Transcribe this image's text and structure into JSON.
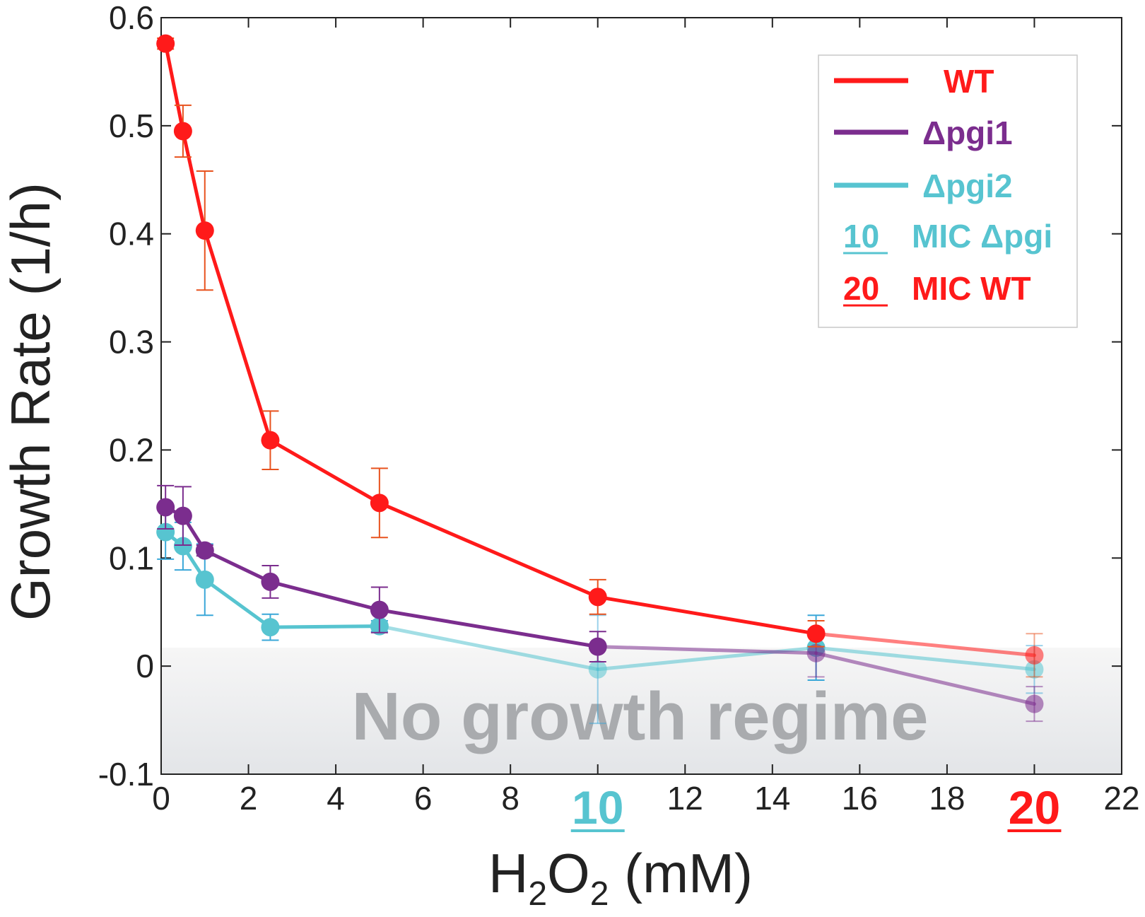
{
  "chart_data": {
    "type": "line",
    "x": [
      0.1,
      0.5,
      1,
      2.5,
      5,
      10,
      15,
      20
    ],
    "series": [
      {
        "name": "WT",
        "color": "#ff1a1a",
        "errorColor": "#e8521e",
        "values": [
          0.576,
          0.495,
          0.403,
          0.209,
          0.151,
          0.064,
          0.03,
          0.01
        ],
        "errors": [
          0.005,
          0.024,
          0.055,
          0.027,
          0.032,
          0.016,
          0.012,
          0.02
        ]
      },
      {
        "name": "Δpgi1",
        "color": "#7b2d8e",
        "errorColor": "#7b2d8e",
        "values": [
          0.147,
          0.139,
          0.107,
          0.078,
          0.052,
          0.018,
          0.012,
          -0.035
        ],
        "errors": [
          0.02,
          0.027,
          0.005,
          0.015,
          0.021,
          0.014,
          0.022,
          0.016
        ]
      },
      {
        "name": "Δpgi2",
        "color": "#57c4d0",
        "errorColor": "#3aa7d8",
        "values": [
          0.124,
          0.111,
          0.08,
          0.036,
          0.037,
          -0.003,
          0.017,
          -0.003
        ],
        "errors": [
          0.025,
          0.022,
          0.033,
          0.012,
          0.005,
          0.05,
          0.03,
          0.022
        ]
      }
    ],
    "xlabel": "H",
    "xlabel_sub1": "2",
    "xlabel_mid": "O",
    "xlabel_sub2": "2",
    "xlabel_tail": " (mM)",
    "ylabel": "Growth Rate (1/h)",
    "xlim": [
      0,
      22
    ],
    "ylim": [
      -0.1,
      0.6
    ],
    "xticks": [
      0,
      2,
      4,
      6,
      8,
      10,
      12,
      14,
      16,
      18,
      20,
      22
    ],
    "yticks": [
      -0.1,
      0,
      0.1,
      0.2,
      0.3,
      0.4,
      0.5,
      0.6
    ],
    "ytick_labels": [
      "-0.1",
      "0",
      "0.1",
      "0.2",
      "0.3",
      "0.4",
      "0.5",
      "0.6"
    ],
    "highlighted_xticks": [
      {
        "value": 10,
        "label": "10",
        "color": "#57c4d0"
      },
      {
        "value": 20,
        "label": "20",
        "color": "#ff1a1a"
      }
    ],
    "no_growth_threshold": 0.017,
    "no_growth_label": "No growth regime",
    "legend_position": "top-right",
    "legend": {
      "wt": "WT",
      "pgi1": "Δpgi1",
      "pgi2": "Δpgi2",
      "mic_pgi_value": "10",
      "mic_pgi_text": "MIC Δpgi",
      "mic_wt_value": "20",
      "mic_wt_text": "MIC WT"
    },
    "grid": false
  }
}
